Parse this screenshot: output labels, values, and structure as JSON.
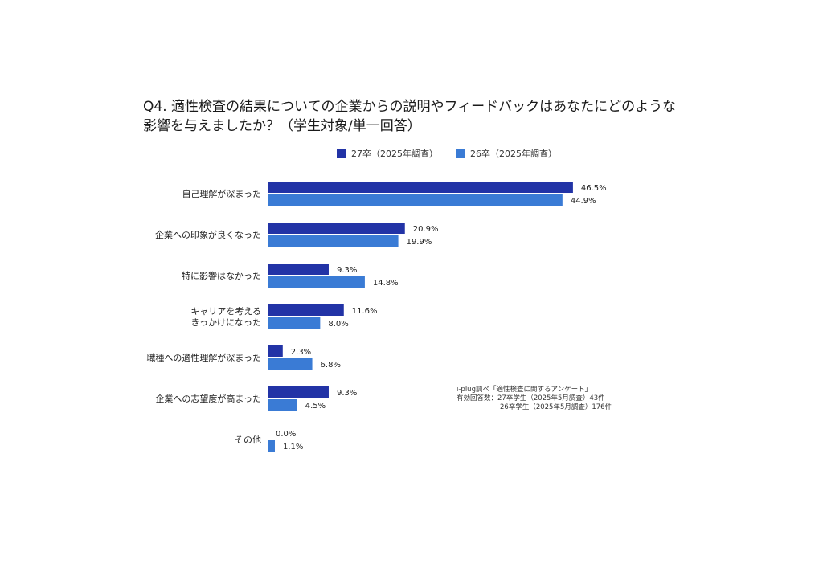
{
  "chart_data": {
    "type": "bar",
    "orientation": "horizontal",
    "title_lines": [
      "Q4. 適性検査の結果についての企業からの説明やフィードバックはあなたにどのような",
      "影響を与えましたか？（学生対象/単一回答）"
    ],
    "legend_position": "top",
    "categories": [
      [
        "自己理解が深まった"
      ],
      [
        "企業への印象が良くなった"
      ],
      [
        "特に影響はなかった"
      ],
      [
        "キャリアを考える",
        "きっかけになった"
      ],
      [
        "職種への適性理解が深まった"
      ],
      [
        "企業への志望度が高まった"
      ],
      [
        "その他"
      ]
    ],
    "series": [
      {
        "name": "27卒（2025年調査）",
        "color": "#2233a6",
        "values": [
          46.5,
          20.9,
          9.3,
          11.6,
          2.3,
          9.3,
          0.0
        ],
        "labels": [
          "46.5%",
          "20.9%",
          "9.3%",
          "11.6%",
          "2.3%",
          "9.3%",
          "0.0%"
        ]
      },
      {
        "name": "26卒（2025年調査）",
        "color": "#3a7bd5",
        "values": [
          44.9,
          19.9,
          14.8,
          8.0,
          6.8,
          4.5,
          1.1
        ],
        "labels": [
          "44.9%",
          "19.9%",
          "14.8%",
          "8.0%",
          "6.8%",
          "4.5%",
          "1.1%"
        ]
      }
    ],
    "xlim": [
      0,
      50
    ],
    "grid": false
  },
  "note": {
    "line1": "i-plug調べ「適性検査に関するアンケート」",
    "line2": "有効回答数：27卒学生（2025年5月調査）43件",
    "line3": "26卒学生（2025年5月調査）176件"
  }
}
